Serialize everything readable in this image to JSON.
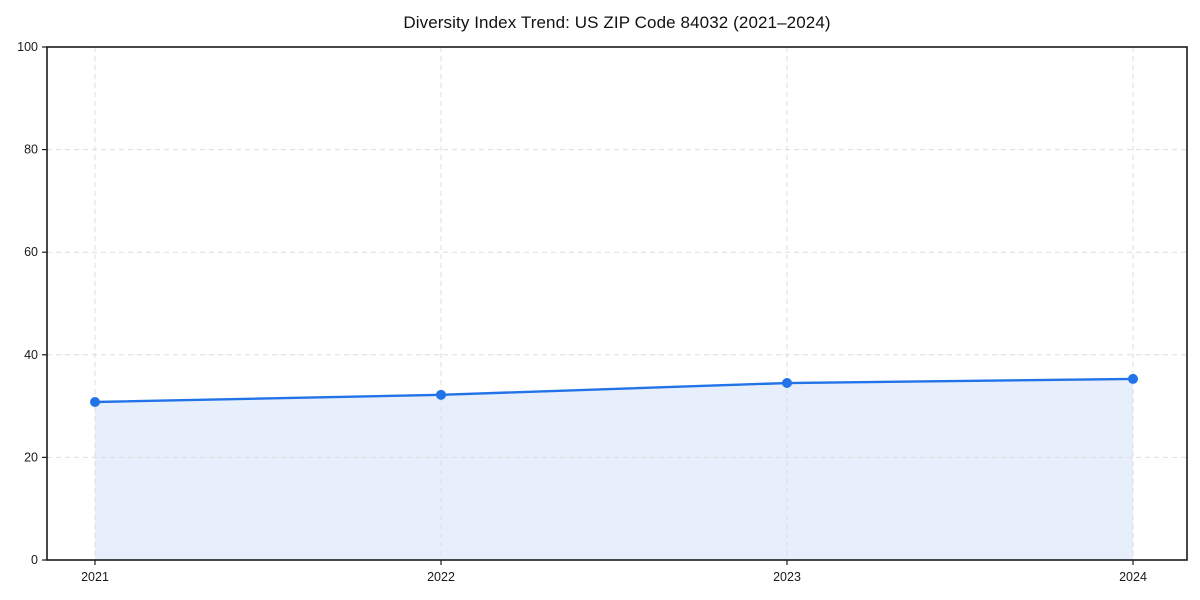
{
  "page": {
    "background_color": "#ffffff"
  },
  "chart_data": {
    "type": "line",
    "title": "Diversity Index Trend: US ZIP Code 84032 (2021–2024)",
    "series": [
      {
        "name": "Diversity Index",
        "x": [
          "2021",
          "2022",
          "2023",
          "2024"
        ],
        "values": [
          30.8,
          32.2,
          34.5,
          35.3
        ]
      }
    ],
    "x_tick_labels": [
      "2021",
      "2022",
      "2023",
      "2024"
    ],
    "y_tick_labels": [
      "0",
      "20",
      "40",
      "60",
      "80",
      "100"
    ],
    "yticks": [
      0,
      20,
      40,
      60,
      80,
      100
    ],
    "ylim": [
      0,
      100
    ],
    "xlabel": "",
    "ylabel": "",
    "grid": "dashed-both-axes",
    "legend_position": "none",
    "area_fill": true,
    "marker_style": "filled-circle",
    "colors": {
      "line": "#2273e8",
      "marker": "#2273e8",
      "area_fill": "#e8effc",
      "grid": "#dedede",
      "spine": "#1a1a1a",
      "text": "#1a1a1a"
    }
  }
}
